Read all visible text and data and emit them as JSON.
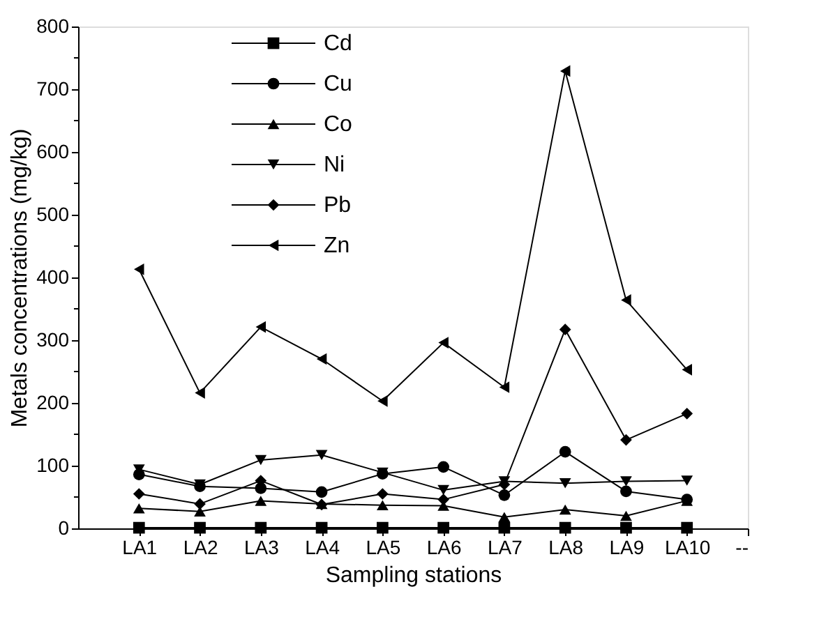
{
  "chart_data": {
    "type": "line",
    "xlabel": "Sampling stations",
    "ylabel": "Metals concentrations (mg/kg)",
    "categories": [
      "LA1",
      "LA2",
      "LA3",
      "LA4",
      "LA5",
      "LA6",
      "LA7",
      "LA8",
      "LA9",
      "LA10",
      "--"
    ],
    "series": [
      {
        "name": "Cd",
        "color": "#000000",
        "marker": "square",
        "values": [
          1,
          1,
          1,
          1,
          1,
          1,
          1,
          1,
          1,
          1,
          null
        ]
      },
      {
        "name": "Cu",
        "color": "#000000",
        "marker": "circle",
        "values": [
          86,
          67,
          64,
          58,
          87,
          98,
          53,
          122,
          59,
          46,
          null
        ]
      },
      {
        "name": "Co",
        "color": "#000000",
        "marker": "triangle",
        "values": [
          32,
          27,
          44,
          39,
          37,
          36,
          18,
          30,
          20,
          44,
          null
        ]
      },
      {
        "name": "Ni",
        "color": "#000000",
        "marker": "triangle-down",
        "values": [
          94,
          70,
          109,
          117,
          89,
          61,
          75,
          72,
          75,
          76,
          null
        ]
      },
      {
        "name": "Pb",
        "color": "#000000",
        "marker": "diamond",
        "values": [
          55,
          39,
          76,
          38,
          55,
          46,
          70,
          317,
          141,
          183,
          null
        ]
      },
      {
        "name": "Zn",
        "color": "#000000",
        "marker": "triangle-left",
        "values": [
          413,
          216,
          321,
          270,
          203,
          296,
          225,
          729,
          364,
          253,
          null
        ]
      }
    ],
    "ylim": [
      0,
      800
    ],
    "yticks": [
      0,
      {
        "value": 50,
        "label": null
      },
      100,
      {
        "value": 150,
        "label": null
      },
      200,
      {
        "value": 250,
        "label": null
      },
      300,
      {
        "value": 350,
        "label": null
      },
      400,
      {
        "value": 450,
        "label": null
      },
      500,
      {
        "value": 550,
        "label": null
      },
      600,
      {
        "value": 650,
        "label": null
      },
      700,
      {
        "value": 750,
        "label": null
      },
      800
    ],
    "grid": false,
    "legend": "top left",
    "line_style": "solid"
  }
}
